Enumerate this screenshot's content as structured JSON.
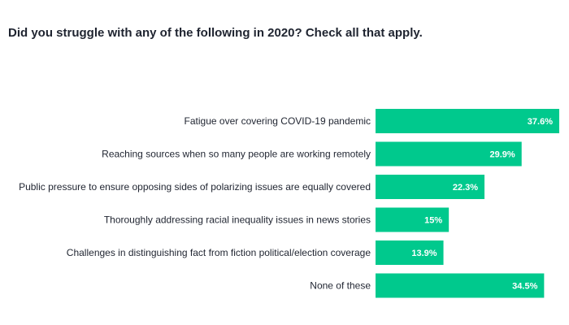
{
  "chart_data": {
    "type": "bar",
    "orientation": "horizontal",
    "title": "Did you struggle with any of the following in 2020? Check all that apply.",
    "categories": [
      "Fatigue over covering COVID-19 pandemic",
      "Reaching sources when so many people are working remotely",
      "Public pressure to ensure opposing sides of polarizing issues are equally covered",
      "Thoroughly addressing racial inequality issues in news stories",
      "Challenges in distinguishing fact from fiction political/election coverage",
      "None of these"
    ],
    "values": [
      37.6,
      29.9,
      22.3,
      15,
      13.9,
      34.5
    ],
    "value_labels": [
      "37.6%",
      "29.9%",
      "22.3%",
      "15%",
      "13.9%",
      "34.5%"
    ],
    "xlim": [
      0,
      37.6
    ],
    "bar_color": "#00c98d",
    "grid": false,
    "legend": "none"
  }
}
